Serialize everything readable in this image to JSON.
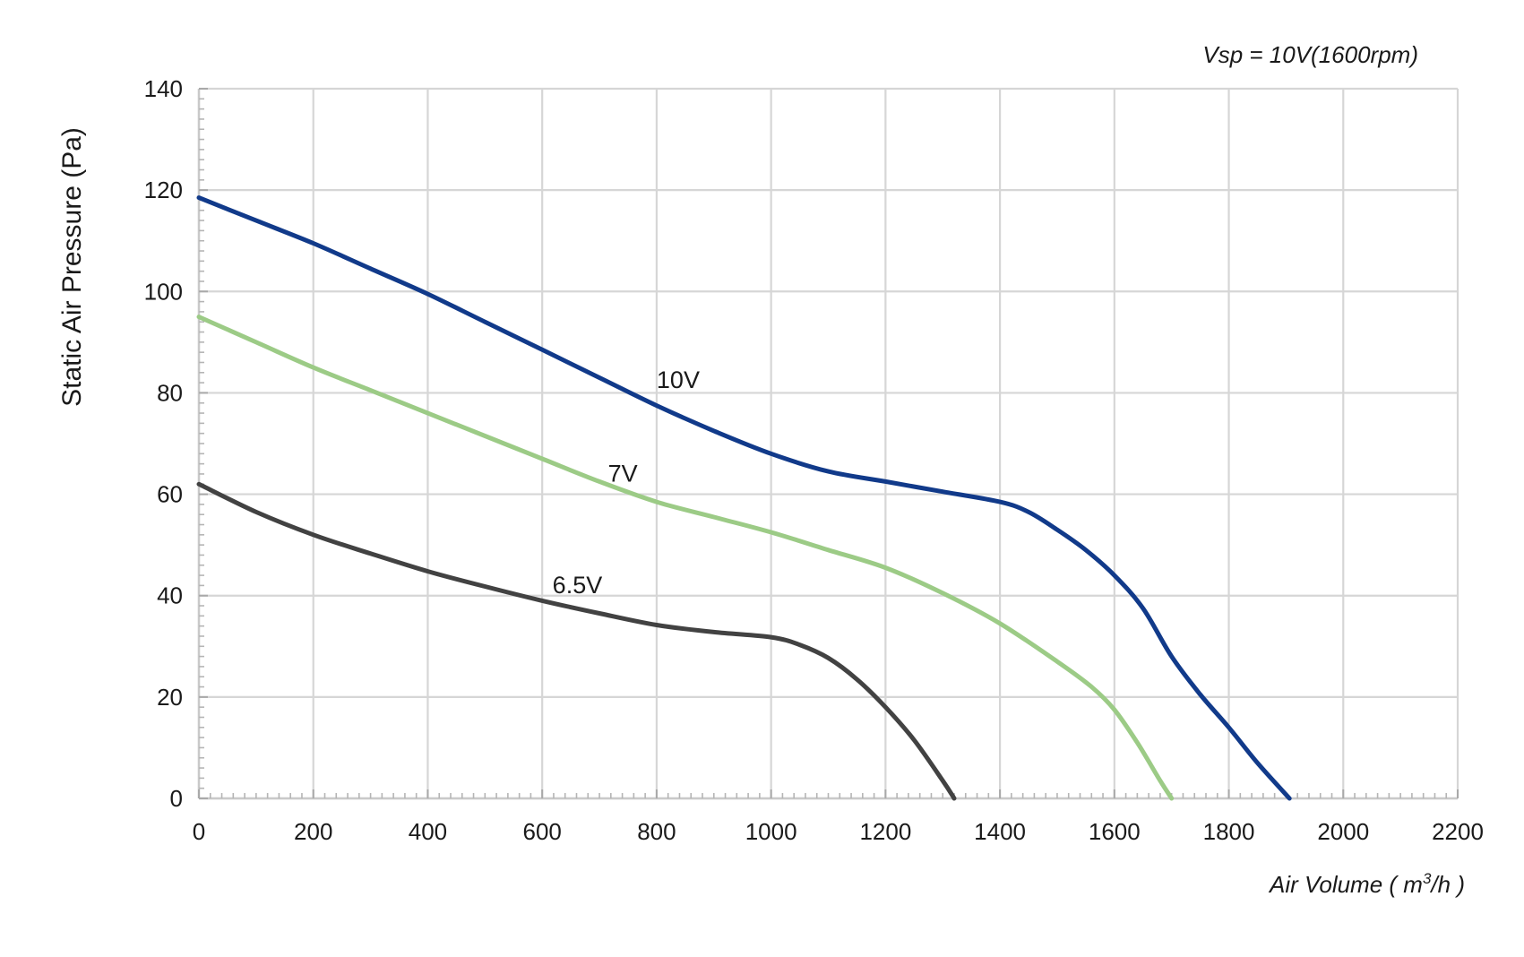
{
  "chart_data": {
    "type": "line",
    "annotation": "Vsp = 10V(1600rpm)",
    "xlabel_prefix": "Air Volume ( m",
    "xlabel_sup": "3",
    "xlabel_suffix": "/h )",
    "ylabel": "Static Air Pressure  (Pa)",
    "xlim": [
      0,
      2200
    ],
    "ylim": [
      0,
      140
    ],
    "x_ticks": [
      0,
      200,
      400,
      600,
      800,
      1000,
      1200,
      1400,
      1600,
      1800,
      2000,
      2200
    ],
    "y_ticks": [
      0,
      20,
      40,
      60,
      80,
      100,
      120,
      140
    ],
    "grid": true,
    "series": [
      {
        "name": "10V",
        "color": "#113a8a",
        "points": [
          [
            0,
            118.5
          ],
          [
            100,
            114
          ],
          [
            200,
            109.5
          ],
          [
            300,
            104.5
          ],
          [
            400,
            99.5
          ],
          [
            500,
            94
          ],
          [
            600,
            88.5
          ],
          [
            700,
            83
          ],
          [
            800,
            77.5
          ],
          [
            900,
            72.5
          ],
          [
            1000,
            68
          ],
          [
            1100,
            64.5
          ],
          [
            1200,
            62.5
          ],
          [
            1300,
            60.5
          ],
          [
            1400,
            58.5
          ],
          [
            1450,
            56.5
          ],
          [
            1500,
            53
          ],
          [
            1550,
            49
          ],
          [
            1600,
            44
          ],
          [
            1650,
            37.5
          ],
          [
            1700,
            28
          ],
          [
            1750,
            20.5
          ],
          [
            1800,
            14
          ],
          [
            1850,
            7
          ],
          [
            1906,
            0
          ]
        ]
      },
      {
        "name": "7V",
        "color": "#9ccb86",
        "points": [
          [
            0,
            95
          ],
          [
            100,
            90
          ],
          [
            200,
            85
          ],
          [
            300,
            80.5
          ],
          [
            400,
            76
          ],
          [
            500,
            71.5
          ],
          [
            600,
            67
          ],
          [
            700,
            62.5
          ],
          [
            800,
            58.5
          ],
          [
            900,
            55.5
          ],
          [
            1000,
            52.5
          ],
          [
            1100,
            49
          ],
          [
            1200,
            45.5
          ],
          [
            1300,
            40.5
          ],
          [
            1400,
            34.5
          ],
          [
            1500,
            27
          ],
          [
            1560,
            22
          ],
          [
            1600,
            17.5
          ],
          [
            1640,
            11
          ],
          [
            1680,
            3.5
          ],
          [
            1700,
            0
          ]
        ]
      },
      {
        "name": "6.5V",
        "color": "#424242",
        "points": [
          [
            0,
            62
          ],
          [
            100,
            56.5
          ],
          [
            200,
            52
          ],
          [
            300,
            48.3
          ],
          [
            400,
            44.8
          ],
          [
            500,
            41.8
          ],
          [
            600,
            39
          ],
          [
            700,
            36.5
          ],
          [
            800,
            34.2
          ],
          [
            900,
            32.8
          ],
          [
            1000,
            31.8
          ],
          [
            1050,
            30.3
          ],
          [
            1100,
            27.7
          ],
          [
            1150,
            23.5
          ],
          [
            1200,
            18
          ],
          [
            1250,
            11.5
          ],
          [
            1300,
            3.5
          ],
          [
            1320,
            0
          ]
        ]
      }
    ],
    "series_labels": [
      {
        "text": "10V",
        "x": 800,
        "y": 81
      },
      {
        "text": "7V",
        "x": 715,
        "y": 62.5
      },
      {
        "text": "6.5V",
        "x": 618,
        "y": 40.5
      }
    ]
  }
}
